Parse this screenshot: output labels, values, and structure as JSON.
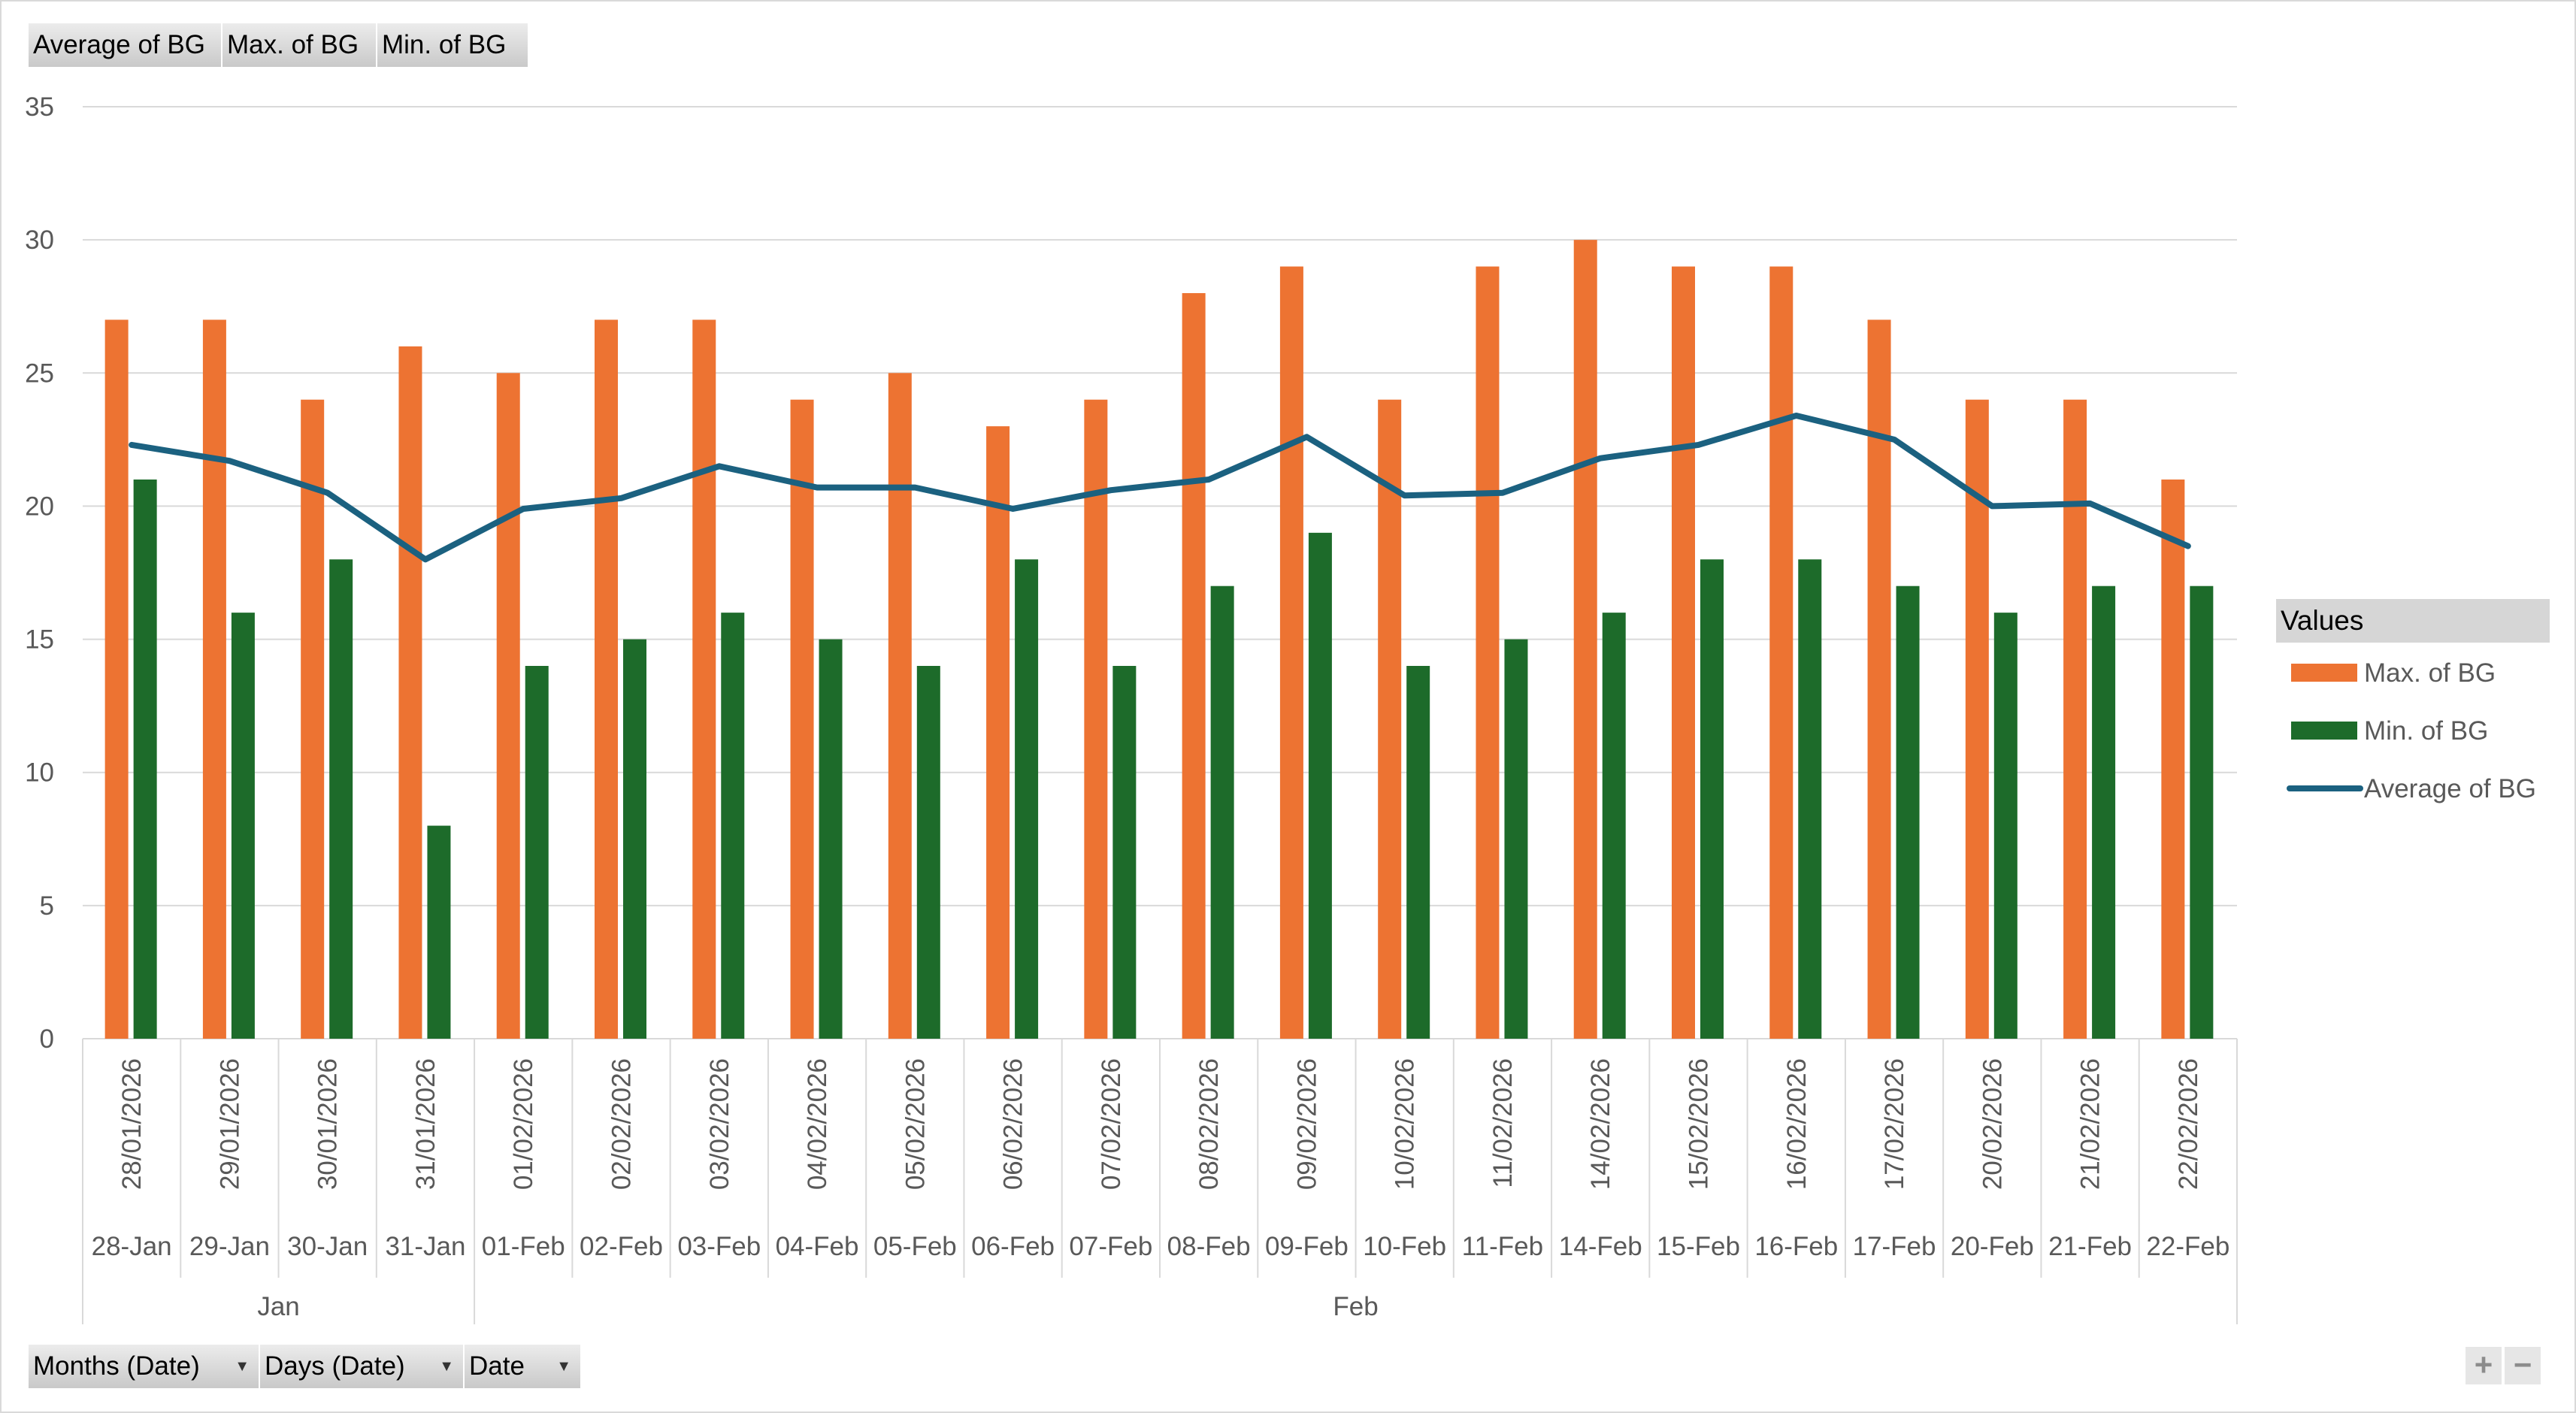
{
  "field_buttons_top": [
    "Average of BG",
    "Max. of BG",
    "Min. of BG"
  ],
  "field_buttons_bottom": [
    "Months (Date)",
    "Days (Date)",
    "Date"
  ],
  "legend_title": "Values",
  "zoom": {
    "plus": "+",
    "minus": "−"
  },
  "colors": {
    "max": "#ed7332",
    "min": "#1d6b2a",
    "avg": "#1b6180",
    "grid": "#d9d9d9",
    "axis_text": "#595959"
  },
  "chart_data": {
    "type": "bar",
    "categories": [
      "28/01/2026",
      "29/01/2026",
      "30/01/2026",
      "31/01/2026",
      "01/02/2026",
      "02/02/2026",
      "03/02/2026",
      "04/02/2026",
      "05/02/2026",
      "06/02/2026",
      "07/02/2026",
      "08/02/2026",
      "09/02/2026",
      "10/02/2026",
      "11/02/2026",
      "14/02/2026",
      "15/02/2026",
      "16/02/2026",
      "17/02/2026",
      "20/02/2026",
      "21/02/2026",
      "22/02/2026"
    ],
    "days": [
      "28-Jan",
      "29-Jan",
      "30-Jan",
      "31-Jan",
      "01-Feb",
      "02-Feb",
      "03-Feb",
      "04-Feb",
      "05-Feb",
      "06-Feb",
      "07-Feb",
      "08-Feb",
      "09-Feb",
      "10-Feb",
      "11-Feb",
      "14-Feb",
      "15-Feb",
      "16-Feb",
      "17-Feb",
      "20-Feb",
      "21-Feb",
      "22-Feb"
    ],
    "months": [
      {
        "label": "Jan",
        "count": 4
      },
      {
        "label": "Feb",
        "count": 18
      }
    ],
    "series": [
      {
        "name": "Max. of BG",
        "type": "bar",
        "values": [
          27,
          27,
          24,
          26,
          25,
          27,
          27,
          24,
          25,
          23,
          24,
          28,
          29,
          24,
          29,
          30,
          29,
          29,
          27,
          24,
          24,
          21
        ]
      },
      {
        "name": "Min. of BG",
        "type": "bar",
        "values": [
          21,
          16,
          18,
          8,
          14,
          15,
          16,
          15,
          14,
          18,
          14,
          17,
          19,
          14,
          15,
          16,
          18,
          18,
          17,
          16,
          17,
          17
        ]
      },
      {
        "name": "Average of BG",
        "type": "line",
        "values": [
          22.3,
          21.7,
          20.5,
          18,
          19.9,
          20.3,
          21.5,
          20.7,
          20.7,
          19.9,
          20.6,
          21,
          22.6,
          20.4,
          20.5,
          21.8,
          22.3,
          23.4,
          22.5,
          20,
          20.1,
          18.5
        ]
      }
    ],
    "yticks": [
      0,
      5,
      10,
      15,
      20,
      25,
      30,
      35
    ],
    "ylim": [
      0,
      35
    ],
    "grid": true,
    "legend_position": "right",
    "legend_entries": [
      "Max. of BG",
      "Min. of BG",
      "Average of BG"
    ]
  }
}
